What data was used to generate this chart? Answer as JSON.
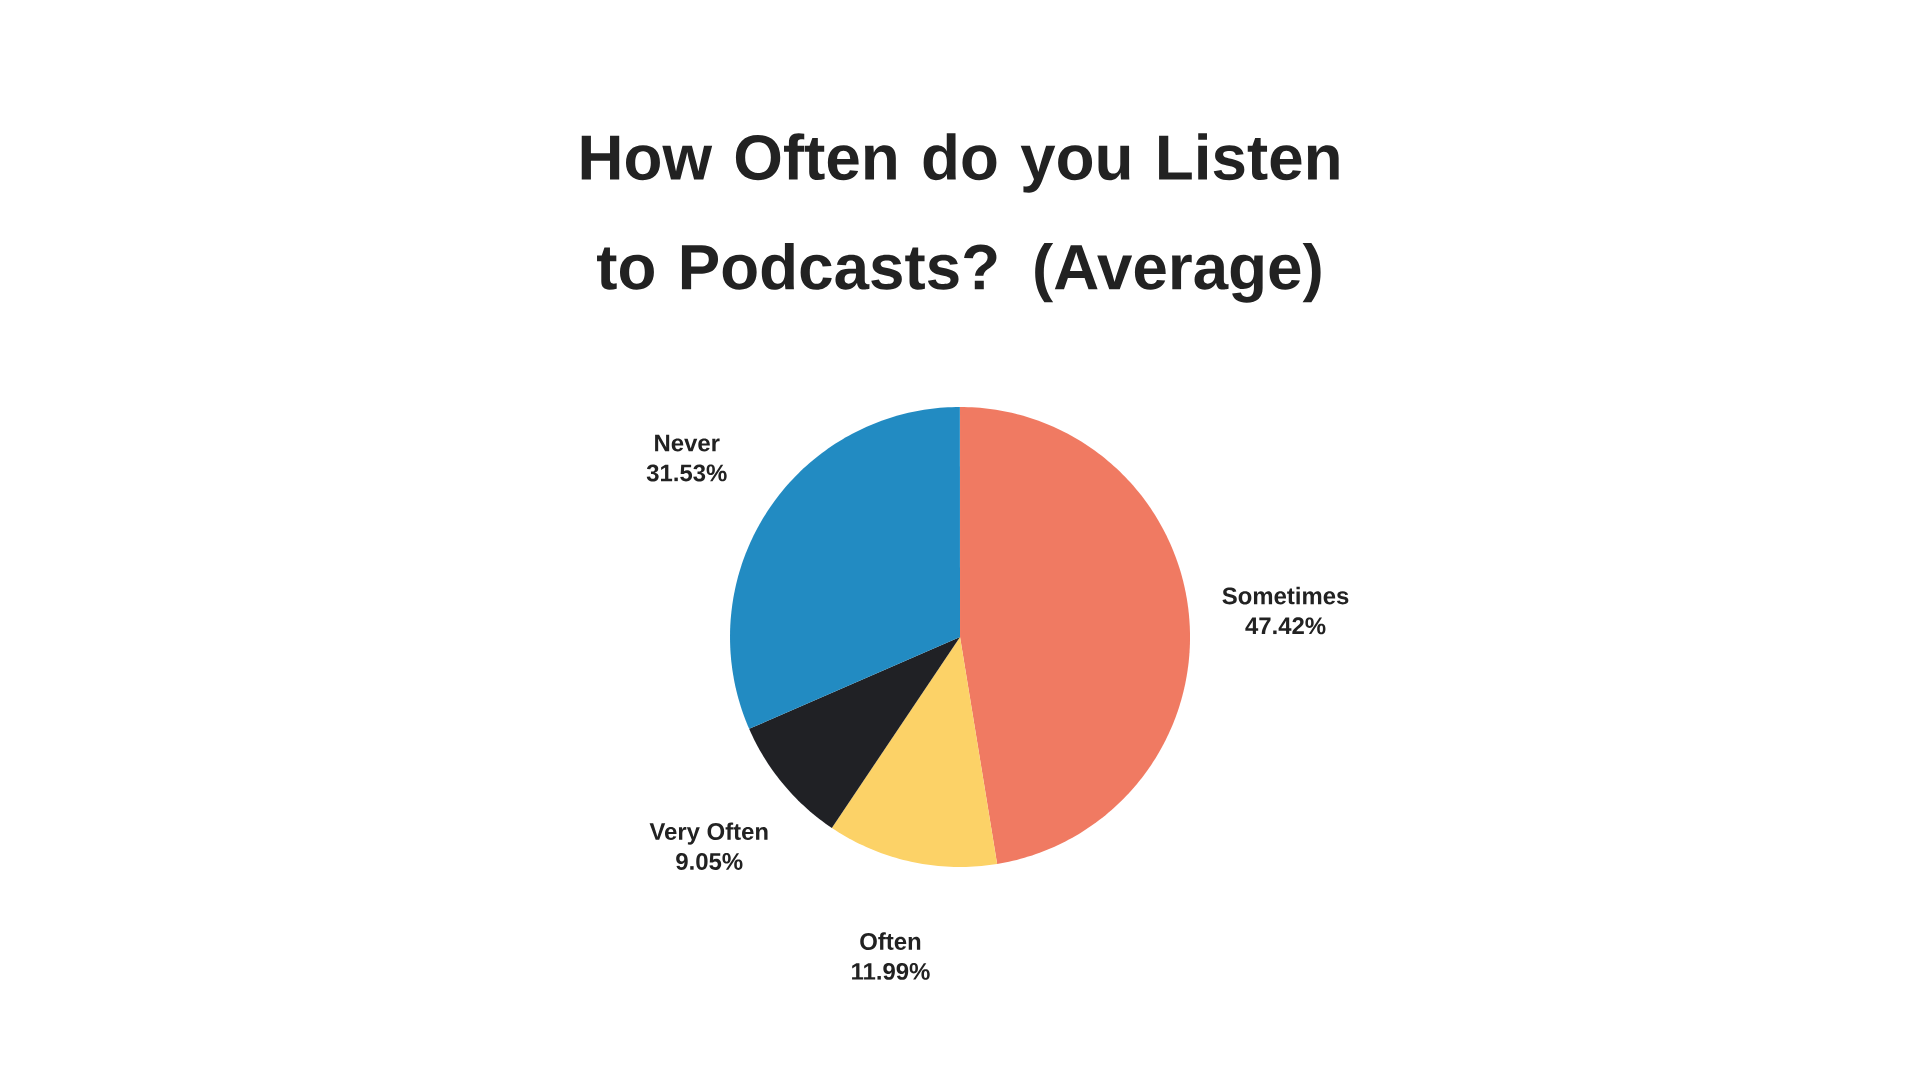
{
  "chart_data": {
    "type": "pie",
    "title": "How Often do you Listen to Podcasts? (Average)",
    "categories": [
      "Sometimes",
      "Often",
      "Very Often",
      "Never"
    ],
    "values": [
      47.42,
      11.99,
      9.05,
      31.53
    ],
    "colors": [
      "#f07a62",
      "#fcd267",
      "#202125",
      "#228bc2"
    ],
    "value_labels": [
      "47.42%",
      "11.99%",
      "9.05%",
      "31.53%"
    ]
  }
}
